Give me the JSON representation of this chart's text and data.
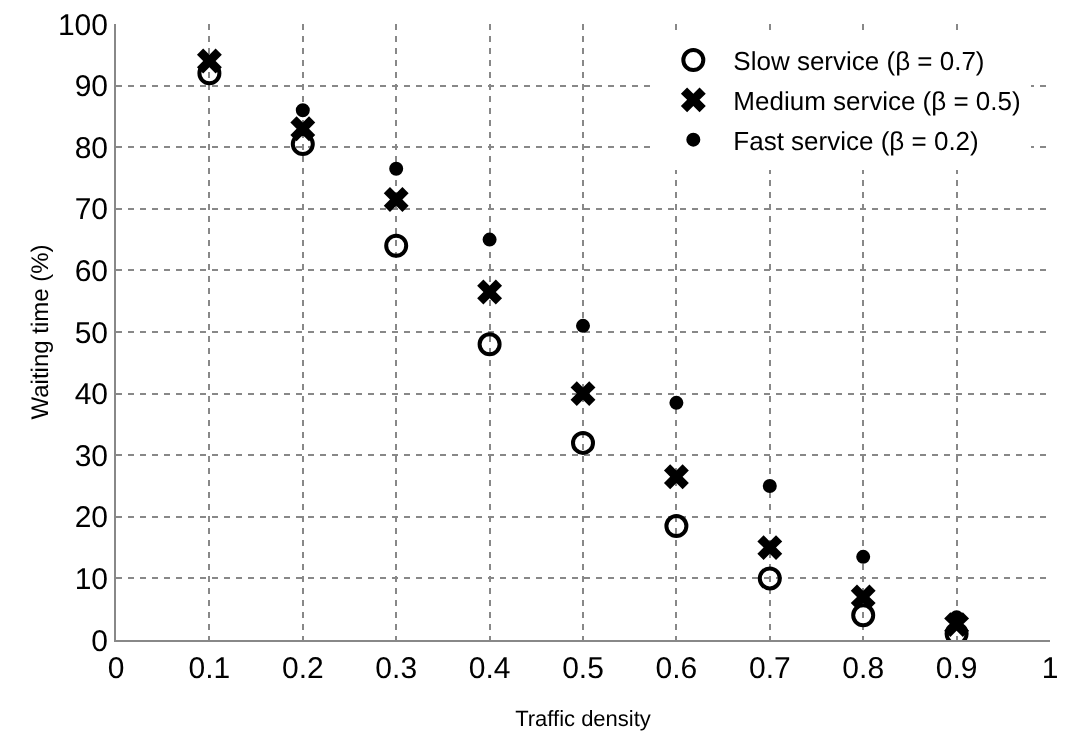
{
  "chart_data": {
    "type": "scatter",
    "xlabel": "Traffic density",
    "ylabel": "Waiting time (%)",
    "x": [
      0.1,
      0.2,
      0.3,
      0.4,
      0.5,
      0.6,
      0.7,
      0.8,
      0.9
    ],
    "series": [
      {
        "name": "Slow service (β = 0.7)",
        "color": "#000000",
        "marker": "circle",
        "values": [
          92,
          80.5,
          64,
          48,
          32,
          18.5,
          10,
          4,
          1
        ]
      },
      {
        "name": "Medium service (β = 0.5)",
        "color": "#000000",
        "marker": "cross",
        "values": [
          94,
          83,
          71.5,
          56.5,
          40,
          26.5,
          15,
          7,
          2.5
        ]
      },
      {
        "name": "Fast service (β = 0.2)",
        "color": "#000000",
        "marker": "circle",
        "values": [
          null,
          86,
          76.5,
          65,
          51,
          38.5,
          25,
          13.5,
          3.7
        ]
      }
    ],
    "xlim": [
      0,
      1
    ],
    "xticks": [
      0,
      0.1,
      0.2,
      0.3,
      0.4,
      0.5,
      0.6,
      0.7,
      0.8,
      0.9,
      1
    ],
    "ylim": [
      0,
      100
    ],
    "yticks": [
      0,
      10,
      20,
      30,
      40,
      50,
      60,
      70,
      80,
      90,
      100
    ],
    "grid": true,
    "legend": "top right"
  }
}
